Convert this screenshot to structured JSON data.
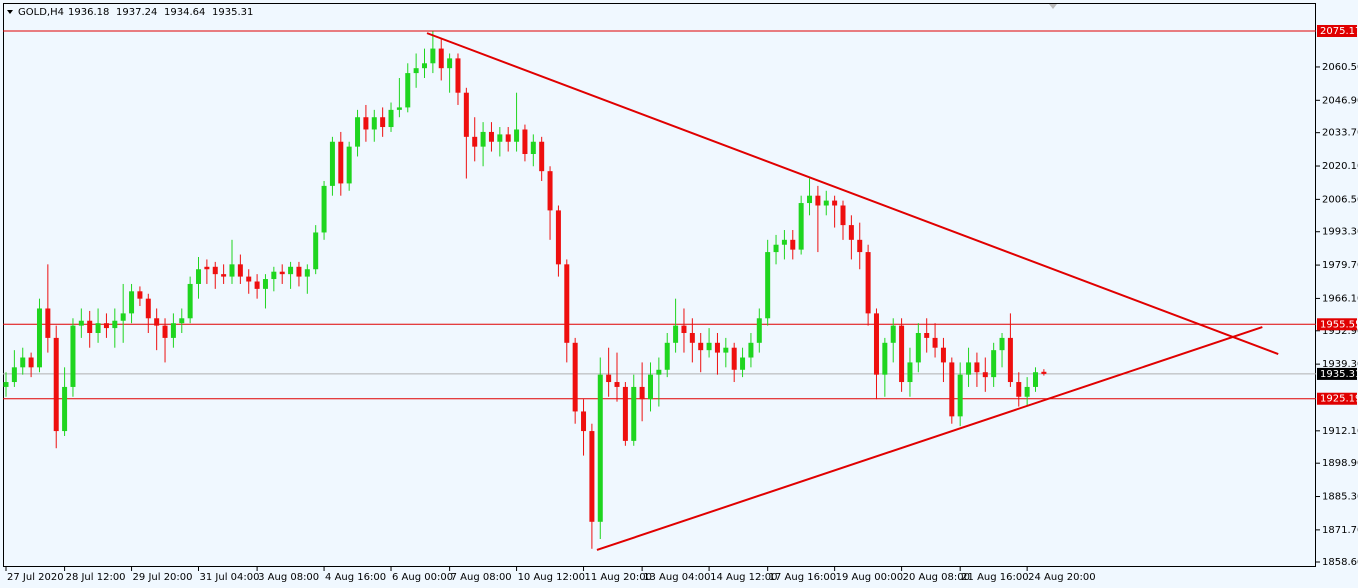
{
  "chart_data": {
    "type": "candlestick",
    "title": "GOLD,H4",
    "categories": [
      "27 Jul 2020",
      null,
      null,
      null,
      null,
      null,
      null,
      "28 Jul 12:00",
      null,
      null,
      null,
      null,
      null,
      null,
      null,
      "29 Jul 20:00",
      null,
      null,
      null,
      null,
      null,
      null,
      null,
      "31 Jul 04:00",
      null,
      null,
      null,
      null,
      null,
      null,
      "3 Aug 08:00",
      null,
      null,
      null,
      null,
      null,
      null,
      null,
      "4 Aug 16:00",
      null,
      null,
      null,
      null,
      null,
      null,
      null,
      "6 Aug 00:00",
      null,
      null,
      null,
      null,
      null,
      null,
      "7 Aug 08:00",
      null,
      null,
      null,
      null,
      null,
      null,
      null,
      "10 Aug 12:00",
      null,
      null,
      null,
      null,
      null,
      null,
      null,
      "11 Aug 20:00",
      null,
      null,
      null,
      null,
      null,
      null,
      "13 Aug 04:00",
      null,
      null,
      null,
      null,
      null,
      null,
      null,
      "14 Aug 12:00",
      null,
      null,
      null,
      null,
      null,
      null,
      "17 Aug 16:00",
      null,
      null,
      null,
      null,
      null,
      null,
      null,
      "19 Aug 00:00",
      null,
      null,
      null,
      null,
      null,
      null,
      null,
      "20 Aug 08:00",
      null,
      null,
      null,
      null,
      null,
      null,
      "21 Aug 16:00",
      null,
      null,
      null,
      null,
      null,
      null,
      null,
      "24 Aug 20:00",
      null,
      null
    ],
    "ohlc": [
      [
        1930,
        1936,
        1926,
        1932
      ],
      [
        1932,
        1945,
        1930,
        1938
      ],
      [
        1938,
        1946,
        1935,
        1942
      ],
      [
        1942,
        1944,
        1934,
        1938
      ],
      [
        1938,
        1966,
        1936,
        1962
      ],
      [
        1962,
        1980,
        1944,
        1950
      ],
      [
        1950,
        1955,
        1905,
        1912
      ],
      [
        1912,
        1938,
        1910,
        1930
      ],
      [
        1930,
        1958,
        1926,
        1955
      ],
      [
        1955,
        1962,
        1950,
        1957
      ],
      [
        1957,
        1961,
        1946,
        1952
      ],
      [
        1952,
        1962,
        1948,
        1956
      ],
      [
        1956,
        1960,
        1950,
        1954
      ],
      [
        1954,
        1962,
        1946,
        1957
      ],
      [
        1957,
        1972,
        1948,
        1960
      ],
      [
        1960,
        1972,
        1956,
        1969
      ],
      [
        1969,
        1971,
        1963,
        1966
      ],
      [
        1966,
        1968,
        1952,
        1958
      ],
      [
        1958,
        1962,
        1945,
        1955
      ],
      [
        1955,
        1958,
        1940,
        1950
      ],
      [
        1950,
        1960,
        1946,
        1956
      ],
      [
        1956,
        1962,
        1952,
        1958
      ],
      [
        1958,
        1975,
        1956,
        1972
      ],
      [
        1972,
        1983,
        1966,
        1978
      ],
      [
        1979,
        1982,
        1972,
        1978
      ],
      [
        1979,
        1981,
        1970,
        1976
      ],
      [
        1976,
        1980,
        1972,
        1975
      ],
      [
        1975,
        1990,
        1972,
        1980
      ],
      [
        1980,
        1984,
        1972,
        1975
      ],
      [
        1975,
        1978,
        1968,
        1973
      ],
      [
        1973,
        1976,
        1966,
        1970
      ],
      [
        1970,
        1976,
        1962,
        1974
      ],
      [
        1974,
        1979,
        1969,
        1977
      ],
      [
        1977,
        1980,
        1972,
        1976
      ],
      [
        1976,
        1981,
        1970,
        1979
      ],
      [
        1979,
        1981,
        1971,
        1975
      ],
      [
        1975,
        1980,
        1968,
        1978
      ],
      [
        1978,
        1996,
        1976,
        1993
      ],
      [
        1993,
        2014,
        1990,
        2012
      ],
      [
        2012,
        2032,
        2008,
        2030
      ],
      [
        2030,
        2034,
        2008,
        2013
      ],
      [
        2013,
        2030,
        2010,
        2028
      ],
      [
        2028,
        2043,
        2024,
        2040
      ],
      [
        2040,
        2045,
        2030,
        2035
      ],
      [
        2035,
        2043,
        2030,
        2040
      ],
      [
        2040,
        2044,
        2032,
        2036
      ],
      [
        2036,
        2046,
        2034,
        2043
      ],
      [
        2043,
        2056,
        2040,
        2044
      ],
      [
        2044,
        2062,
        2042,
        2058
      ],
      [
        2058,
        2066,
        2052,
        2060
      ],
      [
        2060,
        2068,
        2056,
        2062
      ],
      [
        2062,
        2075,
        2058,
        2068
      ],
      [
        2068,
        2072,
        2055,
        2060
      ],
      [
        2060,
        2066,
        2050,
        2064
      ],
      [
        2064,
        2066,
        2045,
        2050
      ],
      [
        2050,
        2052,
        2015,
        2032
      ],
      [
        2032,
        2040,
        2022,
        2028
      ],
      [
        2028,
        2038,
        2020,
        2034
      ],
      [
        2034,
        2038,
        2026,
        2030
      ],
      [
        2030,
        2036,
        2024,
        2033
      ],
      [
        2033,
        2036,
        2026,
        2030
      ],
      [
        2030,
        2050,
        2026,
        2035
      ],
      [
        2035,
        2037,
        2022,
        2025
      ],
      [
        2025,
        2033,
        2020,
        2030
      ],
      [
        2030,
        2032,
        2014,
        2018
      ],
      [
        2018,
        2020,
        1990,
        2002
      ],
      [
        2002,
        2004,
        1975,
        1980
      ],
      [
        1980,
        1982,
        1940,
        1948
      ],
      [
        1948,
        1950,
        1915,
        1920
      ],
      [
        1920,
        1925,
        1902,
        1912
      ],
      [
        1912,
        1915,
        1864,
        1875
      ],
      [
        1875,
        1942,
        1868,
        1935
      ],
      [
        1935,
        1946,
        1926,
        1932
      ],
      [
        1932,
        1944,
        1924,
        1930
      ],
      [
        1930,
        1932,
        1906,
        1908
      ],
      [
        1908,
        1935,
        1906,
        1930
      ],
      [
        1930,
        1940,
        1916,
        1925
      ],
      [
        1925,
        1940,
        1920,
        1935
      ],
      [
        1935,
        1942,
        1922,
        1937
      ],
      [
        1937,
        1952,
        1934,
        1948
      ],
      [
        1948,
        1966,
        1944,
        1955
      ],
      [
        1955,
        1962,
        1944,
        1952
      ],
      [
        1952,
        1958,
        1940,
        1948
      ],
      [
        1948,
        1952,
        1936,
        1945
      ],
      [
        1945,
        1954,
        1942,
        1948
      ],
      [
        1948,
        1952,
        1935,
        1944
      ],
      [
        1944,
        1950,
        1938,
        1946
      ],
      [
        1946,
        1948,
        1932,
        1937
      ],
      [
        1937,
        1946,
        1934,
        1942
      ],
      [
        1942,
        1952,
        1938,
        1948
      ],
      [
        1948,
        1962,
        1944,
        1958
      ],
      [
        1958,
        1990,
        1955,
        1985
      ],
      [
        1985,
        1992,
        1980,
        1988
      ],
      [
        1988,
        1994,
        1982,
        1990
      ],
      [
        1990,
        1994,
        1982,
        1986
      ],
      [
        1986,
        2008,
        1984,
        2005
      ],
      [
        2005,
        2015,
        2000,
        2008
      ],
      [
        2008,
        2012,
        1985,
        2004
      ],
      [
        2004,
        2010,
        2000,
        2006
      ],
      [
        2006,
        2008,
        1995,
        2004
      ],
      [
        2004,
        2006,
        1990,
        1996
      ],
      [
        1996,
        2000,
        1982,
        1990
      ],
      [
        1990,
        1997,
        1978,
        1985
      ],
      [
        1985,
        1988,
        1955,
        1960
      ],
      [
        1960,
        1962,
        1925,
        1935
      ],
      [
        1935,
        1950,
        1926,
        1948
      ],
      [
        1948,
        1958,
        1940,
        1955
      ],
      [
        1955,
        1958,
        1928,
        1932
      ],
      [
        1932,
        1946,
        1926,
        1940
      ],
      [
        1940,
        1956,
        1936,
        1952
      ],
      [
        1952,
        1958,
        1944,
        1950
      ],
      [
        1950,
        1956,
        1942,
        1946
      ],
      [
        1946,
        1950,
        1932,
        1940
      ],
      [
        1940,
        1942,
        1915,
        1918
      ],
      [
        1918,
        1940,
        1914,
        1935
      ],
      [
        1935,
        1946,
        1930,
        1940
      ],
      [
        1940,
        1944,
        1930,
        1936
      ],
      [
        1936,
        1942,
        1928,
        1934
      ],
      [
        1934,
        1948,
        1930,
        1945
      ],
      [
        1945,
        1952,
        1938,
        1950
      ],
      [
        1950,
        1960,
        1930,
        1932
      ],
      [
        1932,
        1936,
        1922,
        1926
      ],
      [
        1926,
        1934,
        1922,
        1930
      ],
      [
        1930,
        1938,
        1928,
        1936
      ],
      [
        1936.18,
        1937.24,
        1934.64,
        1935.31
      ]
    ],
    "up_color": "#1fd51f",
    "down_color": "#ee0f0f",
    "ylim": [
      1851.26,
      2087.81
    ],
    "yticks": [
      {
        "value": 2060.5,
        "label": "2060.50"
      },
      {
        "value": 2046.9,
        "label": "2046.90"
      },
      {
        "value": 2033.7,
        "label": "2033.70"
      },
      {
        "value": 2020.1,
        "label": "2020.10"
      },
      {
        "value": 2006.5,
        "label": "2006.50"
      },
      {
        "value": 1993.3,
        "label": "1993.30"
      },
      {
        "value": 1979.7,
        "label": "1979.70"
      },
      {
        "value": 1966.1,
        "label": "1966.10"
      },
      {
        "value": 1952.9,
        "label": "1952.90"
      },
      {
        "value": 1939.3,
        "label": "1939.30"
      },
      {
        "value": 1912.1,
        "label": "1912.10"
      },
      {
        "value": 1898.9,
        "label": "1898.90"
      },
      {
        "value": 1885.3,
        "label": "1885.30"
      },
      {
        "value": 1871.7,
        "label": "1871.70"
      },
      {
        "value": 1858.6,
        "label": "1858.60"
      }
    ],
    "hlines": [
      {
        "value": 2075.17,
        "color": "#e00000"
      },
      {
        "value": 1955.55,
        "color": "#e00000"
      },
      {
        "value": 1925.19,
        "color": "#e00000"
      },
      {
        "value": 1935.31,
        "color": "#000000"
      }
    ],
    "trendlines": [
      {
        "x": [
          50.3,
          152.0
        ],
        "y": [
          2074.3,
          1943.4
        ],
        "color": "#e00000"
      },
      {
        "x": [
          70.6,
          150.1
        ],
        "y": [
          1863.5,
          1954.4
        ],
        "color": "#e00000"
      }
    ]
  }
}
